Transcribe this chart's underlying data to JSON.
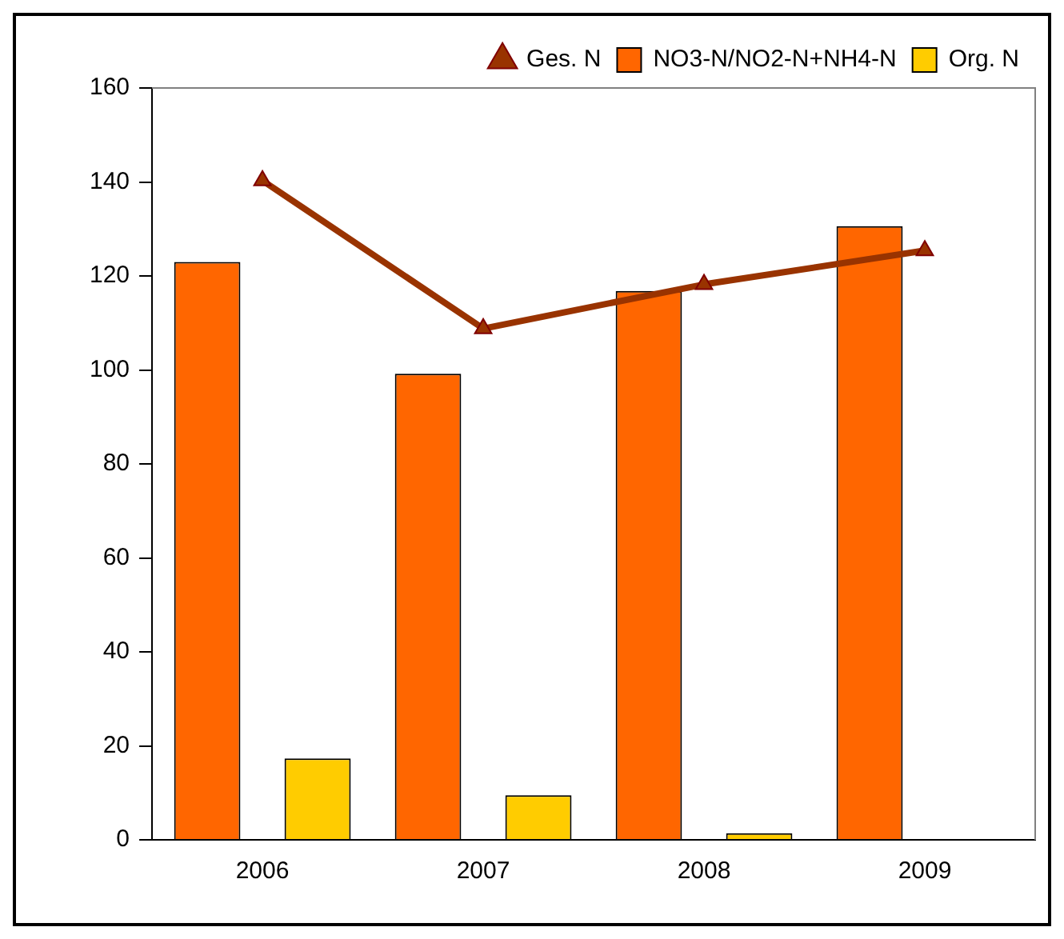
{
  "chart_data": {
    "type": "bar",
    "categories": [
      "2006",
      "2007",
      "2008",
      "2009"
    ],
    "series": [
      {
        "name": "NO3-N/NO2-N+NH4-N",
        "color": "#ff6600",
        "values": [
          123,
          99.2,
          116.8,
          130.6
        ]
      },
      {
        "name": "Org. N",
        "color": "#ffcc00",
        "values": [
          17.3,
          9.5,
          1.4,
          null
        ]
      },
      {
        "name": "Ges. N",
        "type": "line",
        "color": "#993300",
        "values": [
          140.3,
          108.8,
          118.2,
          125.4
        ]
      }
    ],
    "ylim": [
      0,
      160
    ],
    "yticks": [
      0,
      20,
      40,
      60,
      80,
      100,
      120,
      140,
      160
    ],
    "grid": false,
    "legend": "top",
    "marker": "triangle",
    "line_style": "solid"
  }
}
